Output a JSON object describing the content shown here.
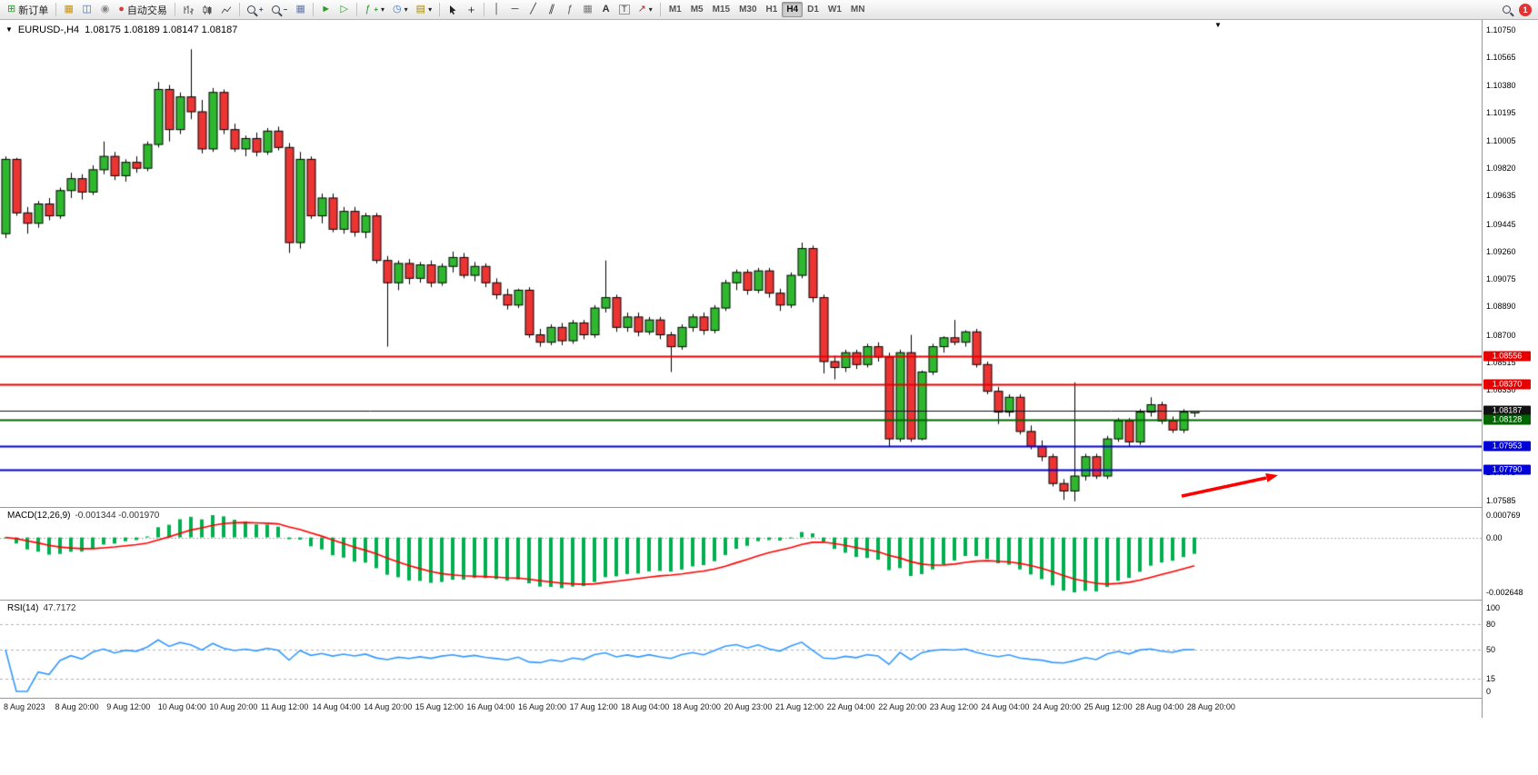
{
  "toolbar": {
    "new_order": "新订单",
    "autotrading": "自动交易",
    "timeframes": [
      "M1",
      "M5",
      "M15",
      "M30",
      "H1",
      "H4",
      "D1",
      "W1",
      "MN"
    ],
    "active_timeframe": "H4",
    "notification_count": "1"
  },
  "icons": {
    "one_click": "▼",
    "new_order": "⊞",
    "chart_window": "▦",
    "new_chart": "◫",
    "hosting": "◉",
    "autotrading": "●",
    "tile_windows": "▦",
    "auto_scroll": "►",
    "chart_shift": "▷",
    "indicators": "ƒ",
    "indicators_plus": "+",
    "periods": "◷",
    "templates": "▤",
    "crosshair": "+",
    "vertical_line": "│",
    "horizontal_line": "─",
    "trendline": "╱",
    "channel": "∥",
    "fibonacci": "ƒ",
    "shapes": "▦",
    "text": "A",
    "text_label": "T",
    "arrows": "↗",
    "dropdown": "▾",
    "scroll_marker": "▼"
  },
  "chart": {
    "title": "EURUSD-,H4",
    "ohlc": "1.08175 1.08189 1.08147 1.08187",
    "price_axis_labels": [
      "1.10750",
      "1.10565",
      "1.10380",
      "1.10195",
      "1.10005",
      "1.09820",
      "1.09635",
      "1.09445",
      "1.09260",
      "1.09075",
      "1.08890",
      "1.08700",
      "1.08515",
      "1.08330",
      "1.08145",
      "1.07960",
      "1.07775",
      "1.07585"
    ],
    "hlines": [
      {
        "price": 1.08556,
        "color": "#e80000",
        "label": "1.08556",
        "width": 2
      },
      {
        "price": 1.0837,
        "color": "#e80000",
        "label": "1.08370",
        "width": 2
      },
      {
        "price": 1.08187,
        "color": "#111111",
        "label": "1.08187",
        "width": 1
      },
      {
        "price": 1.08128,
        "color": "#006600",
        "label": "1.08128",
        "width": 2
      },
      {
        "price": 1.07953,
        "color": "#0000d8",
        "label": "1.07953",
        "width": 2
      },
      {
        "price": 1.0779,
        "color": "#0000d8",
        "label": "1.07790",
        "width": 2
      }
    ]
  },
  "chart_data": {
    "type": "candlestick",
    "symbol": "EURUSD",
    "period": "H4",
    "price_range": {
      "top": 1.1075,
      "bottom": 1.07585
    },
    "candles": [
      [
        1.0938,
        1.099,
        1.0935,
        1.0988
      ],
      [
        1.0988,
        1.0989,
        1.095,
        1.0952
      ],
      [
        1.0952,
        1.0956,
        1.0938,
        1.0945
      ],
      [
        1.0945,
        1.096,
        1.0942,
        1.0958
      ],
      [
        1.0958,
        1.0962,
        1.0947,
        1.095
      ],
      [
        1.095,
        1.0969,
        1.0948,
        1.0967
      ],
      [
        1.0967,
        1.0979,
        1.0962,
        1.0975
      ],
      [
        1.0975,
        1.0978,
        1.0961,
        1.0966
      ],
      [
        1.0966,
        1.0984,
        1.0964,
        1.0981
      ],
      [
        1.0981,
        1.1,
        1.0978,
        1.099
      ],
      [
        1.099,
        1.0993,
        1.0974,
        1.0977
      ],
      [
        1.0977,
        1.0988,
        1.0973,
        1.0986
      ],
      [
        1.0986,
        1.099,
        1.0979,
        1.0982
      ],
      [
        1.0982,
        1.1,
        1.098,
        1.0998
      ],
      [
        1.0998,
        1.104,
        1.0996,
        1.1035
      ],
      [
        1.1035,
        1.1038,
        1.1,
        1.1008
      ],
      [
        1.1008,
        1.1033,
        1.1005,
        1.103
      ],
      [
        1.103,
        1.1062,
        1.1015,
        1.102
      ],
      [
        1.102,
        1.1028,
        1.0992,
        1.0995
      ],
      [
        1.0995,
        1.1036,
        1.0993,
        1.1033
      ],
      [
        1.1033,
        1.1035,
        1.1005,
        1.1008
      ],
      [
        1.1008,
        1.1012,
        1.0993,
        1.0995
      ],
      [
        1.0995,
        1.1004,
        1.099,
        1.1002
      ],
      [
        1.1002,
        1.1006,
        1.099,
        1.0993
      ],
      [
        1.0993,
        1.1009,
        1.0991,
        1.1007
      ],
      [
        1.1007,
        1.101,
        1.0994,
        1.0996
      ],
      [
        1.0996,
        1.0999,
        1.0925,
        1.0932
      ],
      [
        1.0932,
        1.0993,
        1.0928,
        1.0988
      ],
      [
        1.0988,
        1.099,
        1.0948,
        1.095
      ],
      [
        1.095,
        1.0965,
        1.0945,
        1.0962
      ],
      [
        1.0962,
        1.0965,
        1.0939,
        1.0941
      ],
      [
        1.0941,
        1.0956,
        1.0938,
        1.0953
      ],
      [
        1.0953,
        1.0956,
        1.0936,
        1.0939
      ],
      [
        1.0939,
        1.0952,
        1.0935,
        1.095
      ],
      [
        1.095,
        1.0952,
        1.0918,
        1.092
      ],
      [
        1.092,
        1.0923,
        1.0862,
        1.0905
      ],
      [
        1.0905,
        1.092,
        1.09,
        1.0918
      ],
      [
        1.0918,
        1.0921,
        1.0904,
        1.0908
      ],
      [
        1.0908,
        1.0919,
        1.0905,
        1.0917
      ],
      [
        1.0917,
        1.092,
        1.0902,
        1.0905
      ],
      [
        1.0905,
        1.0918,
        1.0903,
        1.0916
      ],
      [
        1.0916,
        1.0926,
        1.0912,
        1.0922
      ],
      [
        1.0922,
        1.0925,
        1.0908,
        1.091
      ],
      [
        1.091,
        1.0919,
        1.0906,
        1.0916
      ],
      [
        1.0916,
        1.0918,
        1.0902,
        1.0905
      ],
      [
        1.0905,
        1.0908,
        1.0894,
        1.0897
      ],
      [
        1.0897,
        1.0901,
        1.0887,
        1.089
      ],
      [
        1.089,
        1.0901,
        1.0888,
        1.09
      ],
      [
        1.09,
        1.0902,
        1.0868,
        1.087
      ],
      [
        1.087,
        1.0874,
        1.0862,
        1.0865
      ],
      [
        1.0865,
        1.0877,
        1.0863,
        1.0875
      ],
      [
        1.0875,
        1.0878,
        1.0863,
        1.0866
      ],
      [
        1.0866,
        1.088,
        1.0864,
        1.0878
      ],
      [
        1.0878,
        1.088,
        1.0867,
        1.087
      ],
      [
        1.087,
        1.089,
        1.0868,
        1.0888
      ],
      [
        1.0888,
        1.092,
        1.0885,
        1.0895
      ],
      [
        1.0895,
        1.0897,
        1.0872,
        1.0875
      ],
      [
        1.0875,
        1.0885,
        1.0872,
        1.0882
      ],
      [
        1.0882,
        1.0885,
        1.0869,
        1.0872
      ],
      [
        1.0872,
        1.0882,
        1.087,
        1.088
      ],
      [
        1.088,
        1.0882,
        1.0867,
        1.087
      ],
      [
        1.087,
        1.0872,
        1.0845,
        1.0862
      ],
      [
        1.0862,
        1.0877,
        1.086,
        1.0875
      ],
      [
        1.0875,
        1.0884,
        1.0872,
        1.0882
      ],
      [
        1.0882,
        1.0885,
        1.087,
        1.0873
      ],
      [
        1.0873,
        1.089,
        1.0871,
        1.0888
      ],
      [
        1.0888,
        1.0907,
        1.0886,
        1.0905
      ],
      [
        1.0905,
        1.0914,
        1.09,
        1.0912
      ],
      [
        1.0912,
        1.0914,
        1.0897,
        1.09
      ],
      [
        1.09,
        1.0915,
        1.0898,
        1.0913
      ],
      [
        1.0913,
        1.0915,
        1.0895,
        1.0898
      ],
      [
        1.0898,
        1.0901,
        1.0886,
        1.089
      ],
      [
        1.089,
        1.0912,
        1.0888,
        1.091
      ],
      [
        1.091,
        1.0932,
        1.0908,
        1.0928
      ],
      [
        1.0928,
        1.093,
        1.0892,
        1.0895
      ],
      [
        1.0895,
        1.0897,
        1.0844,
        1.0852
      ],
      [
        1.0852,
        1.0856,
        1.084,
        1.0848
      ],
      [
        1.0848,
        1.086,
        1.0845,
        1.0858
      ],
      [
        1.0858,
        1.086,
        1.0847,
        1.085
      ],
      [
        1.085,
        1.0864,
        1.0848,
        1.0862
      ],
      [
        1.0862,
        1.0865,
        1.0852,
        1.0855
      ],
      [
        1.0855,
        1.0858,
        1.0795,
        1.08
      ],
      [
        1.08,
        1.086,
        1.0798,
        1.0858
      ],
      [
        1.0858,
        1.087,
        1.0798,
        1.08
      ],
      [
        1.08,
        1.0846,
        1.0799,
        1.0845
      ],
      [
        1.0845,
        1.0864,
        1.0843,
        1.0862
      ],
      [
        1.0862,
        1.0869,
        1.0858,
        1.0868
      ],
      [
        1.0868,
        1.088,
        1.0863,
        1.0865
      ],
      [
        1.0865,
        1.0873,
        1.0862,
        1.0872
      ],
      [
        1.0872,
        1.0874,
        1.0848,
        1.085
      ],
      [
        1.085,
        1.0852,
        1.083,
        1.0832
      ],
      [
        1.0832,
        1.0835,
        1.081,
        1.0818
      ],
      [
        1.0818,
        1.083,
        1.0815,
        1.0828
      ],
      [
        1.0828,
        1.083,
        1.0803,
        1.0805
      ],
      [
        1.0805,
        1.0809,
        1.0793,
        1.0795
      ],
      [
        1.0795,
        1.0799,
        1.0785,
        1.0788
      ],
      [
        1.0788,
        1.079,
        1.0768,
        1.077
      ],
      [
        1.077,
        1.0773,
        1.0759,
        1.0765
      ],
      [
        1.0765,
        1.0838,
        1.0758,
        1.0775
      ],
      [
        1.0775,
        1.079,
        1.0772,
        1.0788
      ],
      [
        1.0788,
        1.079,
        1.0773,
        1.0775
      ],
      [
        1.0775,
        1.0802,
        1.0773,
        1.08
      ],
      [
        1.08,
        1.0814,
        1.0798,
        1.0812
      ],
      [
        1.0812,
        1.0814,
        1.0795,
        1.0798
      ],
      [
        1.0798,
        1.082,
        1.0796,
        1.0818
      ],
      [
        1.0818,
        1.0828,
        1.0815,
        1.0823
      ],
      [
        1.0823,
        1.0825,
        1.081,
        1.0812
      ],
      [
        1.0812,
        1.0815,
        1.0804,
        1.0806
      ],
      [
        1.0806,
        1.082,
        1.0804,
        1.0818
      ],
      [
        1.08175,
        1.08189,
        1.08147,
        1.08187
      ]
    ],
    "time_labels": [
      "8 Aug 2023",
      "8 Aug 20:00",
      "9 Aug 12:00",
      "10 Aug 04:00",
      "10 Aug 20:00",
      "11 Aug 12:00",
      "14 Aug 04:00",
      "14 Aug 20:00",
      "15 Aug 12:00",
      "16 Aug 04:00",
      "16 Aug 20:00",
      "17 Aug 12:00",
      "18 Aug 04:00",
      "18 Aug 20:00",
      "20 Aug 23:00",
      "21 Aug 12:00",
      "22 Aug 04:00",
      "22 Aug 20:00",
      "23 Aug 12:00",
      "24 Aug 04:00",
      "24 Aug 20:00",
      "25 Aug 12:00",
      "28 Aug 04:00",
      "28 Aug 20:00"
    ]
  },
  "macd": {
    "label": "MACD(12,26,9)",
    "values": "-0.001344 -0.001970",
    "fast": 12,
    "slow": 26,
    "signal_period": 9,
    "axis_top": "0.000769",
    "axis_zero": "0.00",
    "axis_bottom": "-0.002648"
  },
  "rsi": {
    "label": "RSI(14)",
    "value": "47.7172",
    "period": 14,
    "levels": [
      100,
      80,
      50,
      15,
      0
    ]
  },
  "colors": {
    "bull": "#2eb82e",
    "bear": "#ee3333",
    "candle_outline": "#000000",
    "macd_histogram": "#00b050",
    "macd_signal": "#ff0000",
    "rsi_line": "#3399ff",
    "zero_line": "#aaaaaa",
    "arrow": "#ff0000"
  }
}
